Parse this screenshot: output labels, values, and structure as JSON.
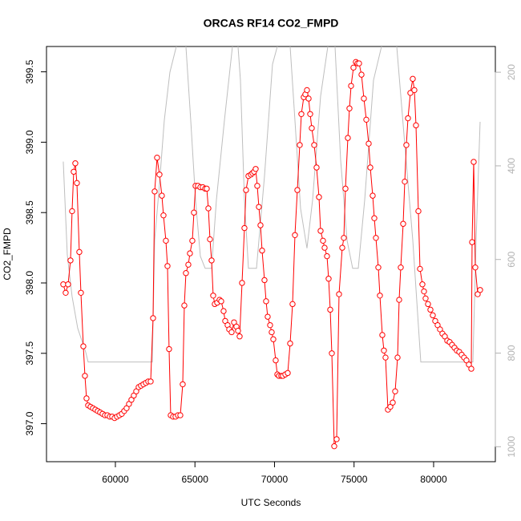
{
  "chart_data": {
    "type": "line",
    "title": "ORCAS RF14 CO2_FMPD",
    "x_label": "UTC Seconds",
    "y_label": "CO2_FMPD",
    "xlim": [
      55670,
      83880
    ],
    "ylim": [
      396.73,
      399.68
    ],
    "y2lim": [
      1032,
      145
    ],
    "xticks": [
      60000,
      65000,
      70000,
      75000,
      80000
    ],
    "yticks": [
      {
        "value": 397,
        "label": "397.0"
      },
      397.5,
      {
        "value": 398,
        "label": "398.0"
      },
      398.5,
      {
        "value": 399,
        "label": "399.0"
      },
      399.5
    ],
    "y2ticks": [
      200,
      400,
      600,
      800,
      1000
    ],
    "y2_color": "#b3b3b3",
    "series": [
      {
        "color": "#bebebe",
        "axis": "y2",
        "marker": "none",
        "x": [
          56725,
          56977,
          57279,
          57632,
          58136,
          58287,
          62318,
          62469,
          62771,
          63073,
          63426,
          63829,
          64131,
          64433,
          64736,
          65038,
          65340,
          65643,
          66046,
          66348,
          66852,
          67356,
          67607,
          67859,
          68111,
          68363,
          68867,
          69371,
          69874,
          70177,
          70580,
          70983,
          71285,
          71638,
          72041,
          72393,
          72897,
          73351,
          73552,
          73804,
          74157,
          74560,
          74912,
          75265,
          75668,
          76222,
          76726,
          77179,
          77683,
          78187,
          78691,
          79194,
          79446,
          82469,
          82671,
          82922
        ],
        "values": [
          391,
          590,
          679,
          747,
          798,
          819,
          819,
          559,
          439,
          303,
          200,
          145,
          97,
          145,
          303,
          473,
          593,
          619,
          619,
          473,
          303,
          145,
          97,
          217,
          473,
          619,
          619,
          422,
          183,
          145,
          97,
          145,
          303,
          491,
          576,
          473,
          251,
          145,
          97,
          145,
          388,
          559,
          619,
          619,
          473,
          217,
          145,
          97,
          145,
          354,
          559,
          819,
          819,
          819,
          559,
          306
        ]
      },
      {
        "color": "#ff0000",
        "marker": "circle",
        "x": [
          56725,
          56876,
          57027,
          57179,
          57279,
          57380,
          57481,
          57582,
          57733,
          57834,
          57985,
          58086,
          58186,
          58287,
          58438,
          58589,
          58740,
          58892,
          59043,
          59194,
          59345,
          59496,
          59647,
          59798,
          59950,
          60101,
          60252,
          60403,
          60554,
          60705,
          60856,
          61008,
          61159,
          61310,
          61461,
          61612,
          61763,
          61914,
          62066,
          62217,
          62368,
          62469,
          62620,
          62771,
          62922,
          63023,
          63174,
          63275,
          63375,
          63476,
          63627,
          63779,
          63930,
          64081,
          64232,
          64333,
          64433,
          64585,
          64685,
          64836,
          64937,
          65038,
          65189,
          65340,
          65491,
          65643,
          65743,
          65844,
          65945,
          66046,
          66146,
          66247,
          66398,
          66549,
          66650,
          66801,
          66902,
          67053,
          67154,
          67305,
          67456,
          67607,
          67708,
          67809,
          67960,
          68111,
          68212,
          68363,
          68514,
          68615,
          68716,
          68817,
          68917,
          69018,
          69119,
          69220,
          69371,
          69471,
          69572,
          69723,
          69824,
          69925,
          70076,
          70177,
          70278,
          70429,
          70529,
          70681,
          70832,
          70983,
          71134,
          71285,
          71436,
          71587,
          71688,
          71839,
          71940,
          72041,
          72142,
          72242,
          72343,
          72494,
          72645,
          72797,
          72897,
          73048,
          73149,
          73300,
          73401,
          73502,
          73603,
          73754,
          73905,
          74056,
          74258,
          74358,
          74459,
          74610,
          74711,
          74812,
          74963,
          75114,
          75215,
          75315,
          75467,
          75618,
          75769,
          75920,
          76021,
          76172,
          76273,
          76374,
          76525,
          76625,
          76776,
          76877,
          76978,
          77129,
          77280,
          77431,
          77583,
          77734,
          77834,
          77935,
          78086,
          78187,
          78287,
          78388,
          78540,
          78691,
          78791,
          78892,
          79043,
          79144,
          79295,
          79396,
          79496,
          79648,
          79799,
          79950,
          80101,
          80252,
          80403,
          80554,
          80705,
          80857,
          81008,
          81159,
          81310,
          81461,
          81612,
          81763,
          81915,
          82066,
          82217,
          82368,
          82418,
          82519,
          82620,
          82771,
          82922
        ],
        "values": [
          397.99,
          397.93,
          397.99,
          398.16,
          398.51,
          398.79,
          398.85,
          398.71,
          398.22,
          397.93,
          397.55,
          397.34,
          397.18,
          397.13,
          397.12,
          397.11,
          397.1,
          397.09,
          397.08,
          397.07,
          397.06,
          397.06,
          397.05,
          397.05,
          397.04,
          397.05,
          397.06,
          397.07,
          397.09,
          397.11,
          397.14,
          397.17,
          397.2,
          397.23,
          397.26,
          397.27,
          397.28,
          397.29,
          397.3,
          397.3,
          397.75,
          398.65,
          398.89,
          398.77,
          398.62,
          398.48,
          398.3,
          398.12,
          397.53,
          397.06,
          397.05,
          397.05,
          397.06,
          397.06,
          397.28,
          397.84,
          398.07,
          398.13,
          398.21,
          398.3,
          398.5,
          398.69,
          398.69,
          398.68,
          398.68,
          398.67,
          398.67,
          398.53,
          398.31,
          398.16,
          397.91,
          397.85,
          397.86,
          397.88,
          397.87,
          397.8,
          397.73,
          397.7,
          397.67,
          397.65,
          397.72,
          397.69,
          397.66,
          397.62,
          398.0,
          398.39,
          398.66,
          398.76,
          398.77,
          398.78,
          398.79,
          398.81,
          398.69,
          398.54,
          398.41,
          398.23,
          398.02,
          397.87,
          397.76,
          397.7,
          397.65,
          397.6,
          397.45,
          397.35,
          397.34,
          397.34,
          397.34,
          397.35,
          397.36,
          397.57,
          397.85,
          398.34,
          398.66,
          398.98,
          399.2,
          399.32,
          399.34,
          399.37,
          399.31,
          399.2,
          399.1,
          398.98,
          398.82,
          398.61,
          398.37,
          398.3,
          398.25,
          398.19,
          398.03,
          397.81,
          397.5,
          396.84,
          396.89,
          397.92,
          398.25,
          398.32,
          398.67,
          399.03,
          399.24,
          399.4,
          399.53,
          399.57,
          399.56,
          399.56,
          399.48,
          399.31,
          399.16,
          398.99,
          398.82,
          398.62,
          398.46,
          398.32,
          398.11,
          397.91,
          397.63,
          397.52,
          397.47,
          397.1,
          397.12,
          397.15,
          397.23,
          397.47,
          397.88,
          398.11,
          398.42,
          398.72,
          398.98,
          399.17,
          399.35,
          399.45,
          399.37,
          399.12,
          398.51,
          398.1,
          397.99,
          397.94,
          397.89,
          397.85,
          397.81,
          397.77,
          397.73,
          397.7,
          397.67,
          397.64,
          397.62,
          397.59,
          397.58,
          397.56,
          397.54,
          397.52,
          397.51,
          397.49,
          397.47,
          397.45,
          397.42,
          397.39,
          398.29,
          398.86,
          398.11,
          397.92,
          397.95
        ]
      }
    ]
  }
}
